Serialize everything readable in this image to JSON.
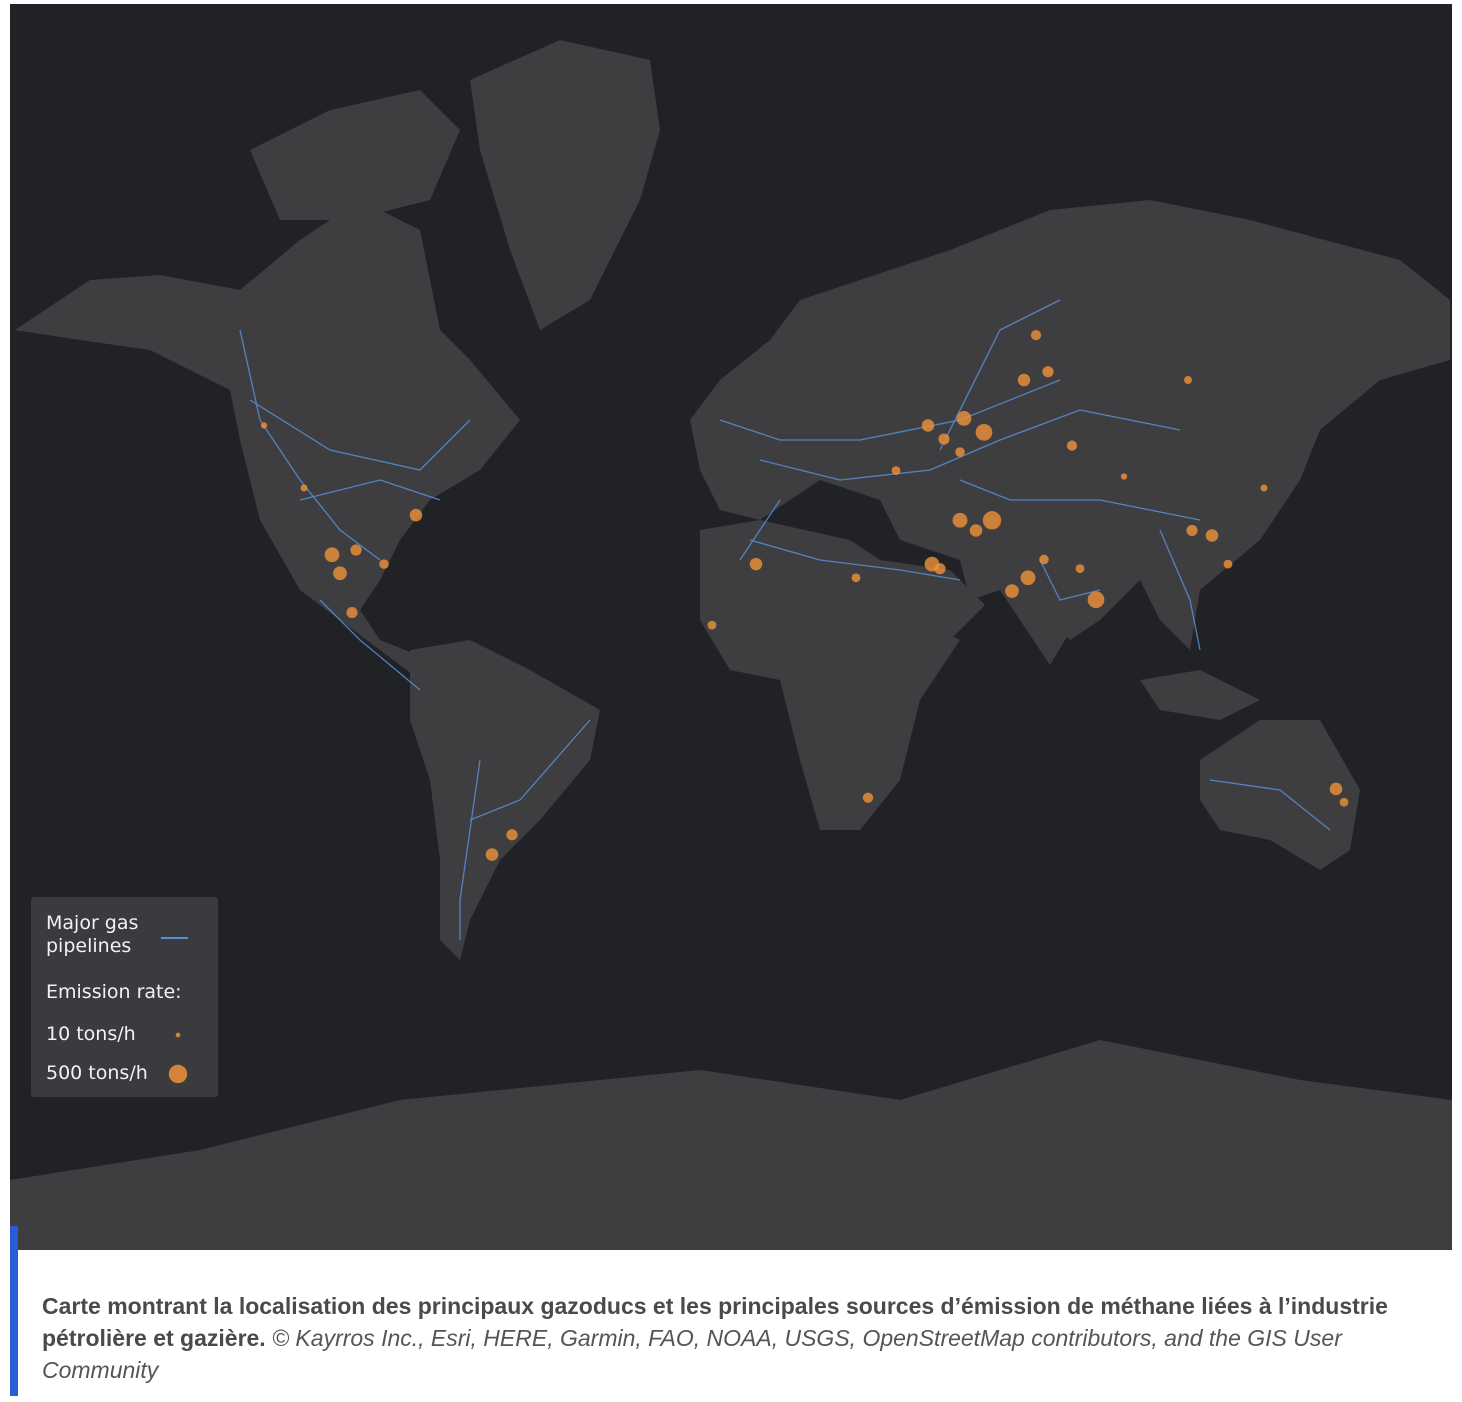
{
  "map": {
    "legend": {
      "pipelines": "Major gas pipelines",
      "emission_title": "Emission rate:",
      "sizes": [
        {
          "value": 10,
          "label": "10 tons/h"
        },
        {
          "value": 500,
          "label": "500 tons/h"
        }
      ]
    },
    "sources": [
      {
        "lon": 70,
        "lat": 61,
        "rate": 200
      },
      {
        "lon": 76,
        "lat": 62,
        "rate": 150
      },
      {
        "lon": 73,
        "lat": 66,
        "rate": 120
      },
      {
        "lon": 55,
        "lat": 56,
        "rate": 300
      },
      {
        "lon": 60,
        "lat": 54,
        "rate": 400
      },
      {
        "lon": 50,
        "lat": 53,
        "rate": 150
      },
      {
        "lon": 46,
        "lat": 55,
        "rate": 200
      },
      {
        "lon": 54,
        "lat": 51,
        "rate": 100
      },
      {
        "lon": 38,
        "lat": 48,
        "rate": 80
      },
      {
        "lon": 62,
        "lat": 39,
        "rate": 500
      },
      {
        "lon": 54,
        "lat": 39,
        "rate": 300
      },
      {
        "lon": 58,
        "lat": 37,
        "rate": 200
      },
      {
        "lon": 47,
        "lat": 30,
        "rate": 300
      },
      {
        "lon": 49,
        "lat": 29,
        "rate": 150
      },
      {
        "lon": 67,
        "lat": 24,
        "rate": 250
      },
      {
        "lon": 71,
        "lat": 27,
        "rate": 300
      },
      {
        "lon": 88,
        "lat": 22,
        "rate": 400
      },
      {
        "lon": 75,
        "lat": 31,
        "rate": 100
      },
      {
        "lon": 84,
        "lat": 29,
        "rate": 80
      },
      {
        "lon": 117,
        "lat": 36,
        "rate": 200
      },
      {
        "lon": 112,
        "lat": 37,
        "rate": 150
      },
      {
        "lon": -103,
        "lat": 32,
        "rate": 300
      },
      {
        "lon": -101,
        "lat": 28,
        "rate": 250
      },
      {
        "lon": -97,
        "lat": 33,
        "rate": 150
      },
      {
        "lon": -82,
        "lat": 40,
        "rate": 200
      },
      {
        "lon": -90,
        "lat": 30,
        "rate": 100
      },
      {
        "lon": -98,
        "lat": 19,
        "rate": 150
      },
      {
        "lon": 3,
        "lat": 30,
        "rate": 200
      },
      {
        "lon": -8,
        "lat": 16,
        "rate": 80
      },
      {
        "lon": 31,
        "lat": -26,
        "rate": 120
      },
      {
        "lon": 148,
        "lat": -24,
        "rate": 200
      },
      {
        "lon": 150,
        "lat": -27,
        "rate": 80
      },
      {
        "lon": -63,
        "lat": -38,
        "rate": 200
      },
      {
        "lon": -58,
        "lat": -34,
        "rate": 150
      },
      {
        "lon": 111,
        "lat": 61,
        "rate": 60
      },
      {
        "lon": 130,
        "lat": 45,
        "rate": 40
      },
      {
        "lon": 121,
        "lat": 30,
        "rate": 80
      },
      {
        "lon": 28,
        "lat": 27,
        "rate": 80
      },
      {
        "lon": 82,
        "lat": 52,
        "rate": 120
      },
      {
        "lon": 95,
        "lat": 47,
        "rate": 30
      },
      {
        "lon": -110,
        "lat": 45,
        "rate": 40
      },
      {
        "lon": -120,
        "lat": 55,
        "rate": 30
      }
    ]
  },
  "caption": {
    "bold": "Carte montrant la localisation des principaux gazoducs et les principales sources d’émission de méthane liées à l’industrie pétrolière et gazière.",
    "credit": "© Kayrros Inc., Esri, HERE, Garmin, FAO, NOAA, USGS, OpenStreetMap contributors, and the GIS User Community"
  }
}
